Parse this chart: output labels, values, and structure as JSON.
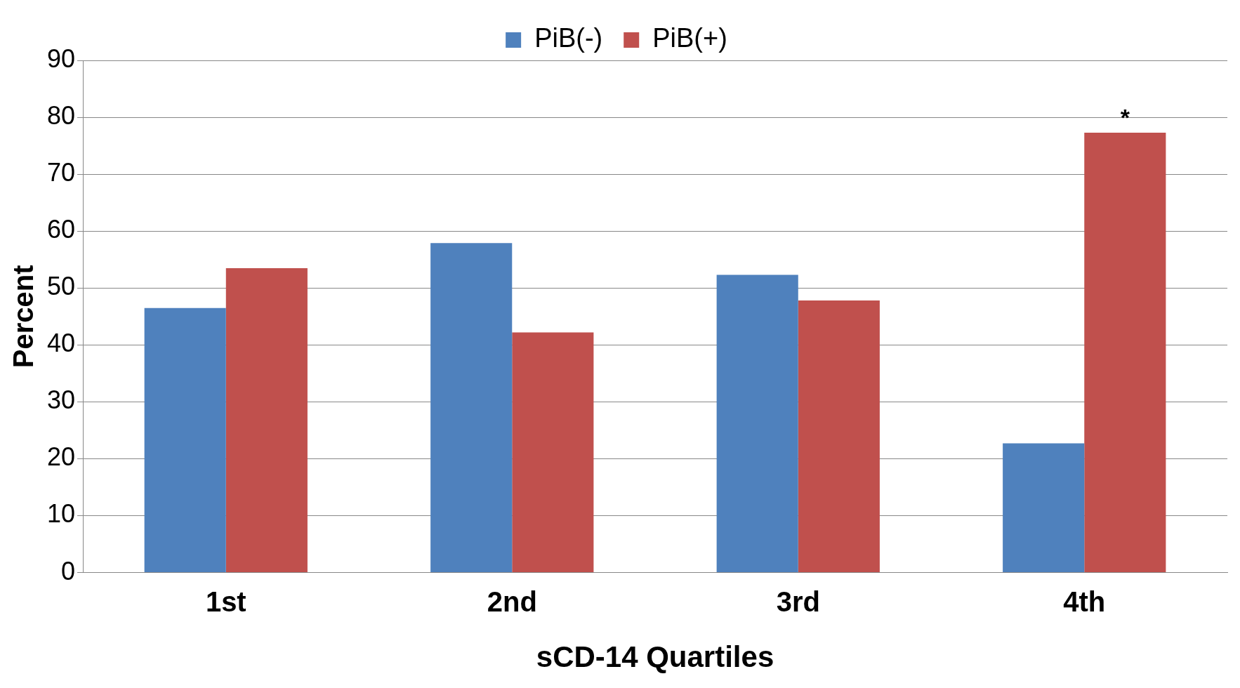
{
  "chart_data": {
    "type": "bar",
    "xlabel": "sCD-14 Quartiles",
    "ylabel": "Percent",
    "categories": [
      "1st",
      "2nd",
      "3rd",
      "4th"
    ],
    "series": [
      {
        "name": "PiB(-)",
        "color": "#4f81bd",
        "values": [
          46.5,
          57.9,
          52.3,
          22.7
        ]
      },
      {
        "name": "PiB(+)",
        "color": "#c0504d",
        "values": [
          53.5,
          42.2,
          47.8,
          77.3
        ]
      }
    ],
    "ylim": [
      0,
      90
    ],
    "yticks": [
      0,
      10,
      20,
      30,
      40,
      50,
      60,
      70,
      80,
      90
    ],
    "grid": "y",
    "legend": "top",
    "annotations": [
      {
        "text": "*",
        "x": "4th",
        "y": 77.3
      }
    ]
  }
}
